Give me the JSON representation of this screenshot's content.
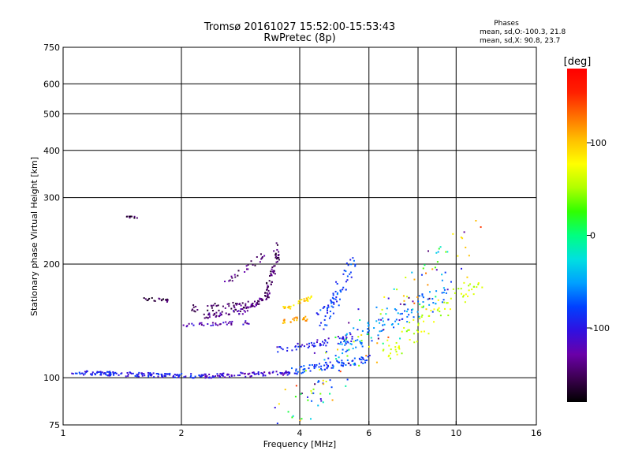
{
  "chart_data": {
    "type": "scatter",
    "title": "Tromsø 20161027 15:52:00-15:53:43",
    "subtitle": "RwPretec (8p)",
    "stats": {
      "heading": "Phases",
      "o_mode": "mean, sd,O:-100.3, 21.8",
      "x_mode": "mean, sd,X:  90.8, 23.7"
    },
    "xlabel": "Frequency [MHz]",
    "ylabel": "Stationary phase Virtual Height [km]",
    "x_scale": "log",
    "y_scale": "log",
    "xlim": [
      1,
      16
    ],
    "ylim": [
      75,
      750
    ],
    "x_ticks": [
      1,
      2,
      4,
      6,
      8,
      10,
      16
    ],
    "x_tick_labels": [
      "1",
      "2",
      "4",
      "6",
      "8",
      "10",
      "16"
    ],
    "y_ticks": [
      75,
      100,
      200,
      300,
      400,
      500,
      600,
      750
    ],
    "y_tick_labels": [
      "75",
      "100",
      "200",
      "300",
      "400",
      "500",
      "600",
      "750"
    ],
    "grid": true,
    "colorbar": {
      "label": "[deg]",
      "ticks": [
        100,
        0,
        -100
      ],
      "tick_labels": [
        "100",
        "0",
        "-100"
      ],
      "range": [
        -180,
        180
      ],
      "colormap": [
        "#000000",
        "#3c0050",
        "#6a00a8",
        "#3010e0",
        "#0040ff",
        "#00a0ff",
        "#00e0e0",
        "#00ff80",
        "#30ff00",
        "#b0ff00",
        "#ffff00",
        "#ffc000",
        "#ff7000",
        "#ff2000",
        "#ff0000"
      ]
    },
    "traces": [
      {
        "f": [
          1.05,
          2.3
        ],
        "h": [
          103,
          101
        ],
        "phase": -95,
        "count": 150,
        "jitter": 0.012
      },
      {
        "f": [
          2.3,
          3.8
        ],
        "h": [
          101,
          103
        ],
        "phase": -110,
        "count": 90,
        "jitter": 0.012
      },
      {
        "f": [
          3.8,
          6.0
        ],
        "h": [
          104,
          112
        ],
        "phase": -80,
        "count": 80,
        "jitter": 0.02
      },
      {
        "f": [
          1.4,
          1.5
        ],
        "h": [
          100,
          101
        ],
        "phase": -95,
        "count": 0,
        "jitter": 0
      },
      {
        "f": [
          2.05,
          3.1
        ],
        "h": [
          152,
          156
        ],
        "phase": -150,
        "count": 50,
        "jitter": 0.02
      },
      {
        "f": [
          2.25,
          2.9
        ],
        "h": [
          145,
          150
        ],
        "phase": -135,
        "count": 40,
        "jitter": 0.015
      },
      {
        "f": [
          2.0,
          3.0
        ],
        "h": [
          138,
          140
        ],
        "phase": -120,
        "count": 35,
        "jitter": 0.01
      },
      {
        "f": [
          2.9,
          3.35
        ],
        "h": [
          150,
          166
        ],
        "phase": -140,
        "count": 30,
        "jitter": 0.015
      },
      {
        "f": [
          3.25,
          3.55
        ],
        "h": [
          160,
          225
        ],
        "phase": -150,
        "count": 60,
        "jitter": 0.03
      },
      {
        "f": [
          2.6,
          3.3
        ],
        "h": [
          178,
          215
        ],
        "phase": -145,
        "count": 25,
        "jitter": 0.02
      },
      {
        "f": [
          1.6,
          1.85
        ],
        "h": [
          162,
          160
        ],
        "phase": -155,
        "count": 20,
        "jitter": 0.01
      },
      {
        "f": [
          1.45,
          1.55
        ],
        "h": [
          266,
          266
        ],
        "phase": -160,
        "count": 10,
        "jitter": 0.005
      },
      {
        "f": [
          3.6,
          4.3
        ],
        "h": [
          152,
          162
        ],
        "phase": 95,
        "count": 30,
        "jitter": 0.015
      },
      {
        "f": [
          3.6,
          4.2
        ],
        "h": [
          140,
          144
        ],
        "phase": 110,
        "count": 25,
        "jitter": 0.015
      },
      {
        "f": [
          3.5,
          5.5
        ],
        "h": [
          118,
          128
        ],
        "phase": -100,
        "count": 60,
        "jitter": 0.02
      },
      {
        "f": [
          4.5,
          5.5
        ],
        "h": [
          140,
          200
        ],
        "phase": -80,
        "count": 70,
        "jitter": 0.05
      },
      {
        "f": [
          5.0,
          9.5
        ],
        "h": [
          120,
          170
        ],
        "phase": -60,
        "count": 90,
        "jitter": 0.06
      },
      {
        "f": [
          6.5,
          11.5
        ],
        "h": [
          115,
          180
        ],
        "phase": 60,
        "count": 80,
        "jitter": 0.06
      },
      {
        "f": [
          3.5,
          11.0
        ],
        "h": [
          78,
          230
        ],
        "phase": 0,
        "count": 160,
        "jitter": 0.15
      }
    ]
  }
}
